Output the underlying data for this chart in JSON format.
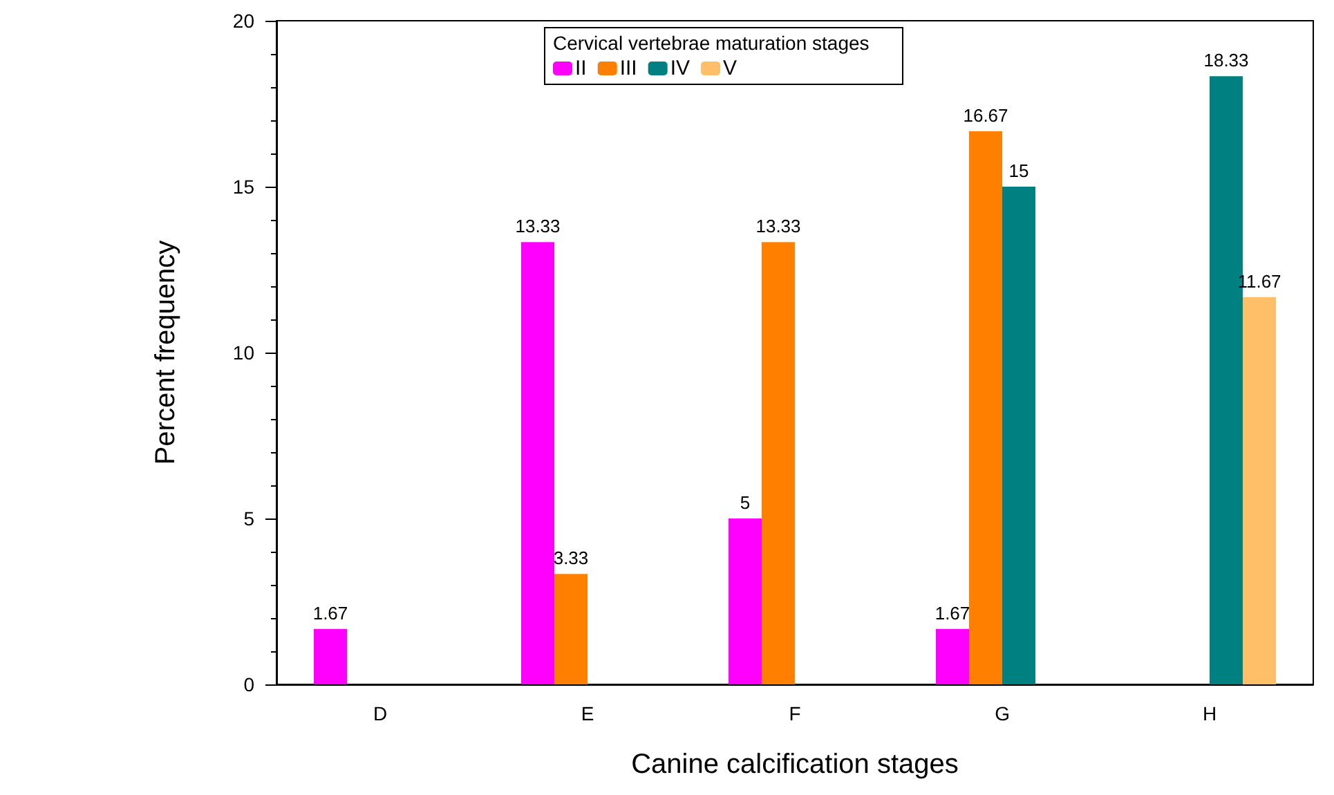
{
  "chart_data": {
    "type": "bar",
    "xlabel": "Canine calcification stages",
    "ylabel": "Percent frequency",
    "legend_title": "Cervical vertebrae maturation stages",
    "categories": [
      "D",
      "E",
      "F",
      "G",
      "H"
    ],
    "series": [
      {
        "name": "II",
        "color": "#ff00ff",
        "values": [
          1.67,
          13.33,
          5,
          1.67,
          null
        ]
      },
      {
        "name": "III",
        "color": "#ff8000",
        "values": [
          null,
          3.33,
          13.33,
          16.67,
          null
        ]
      },
      {
        "name": "IV",
        "color": "#008080",
        "values": [
          null,
          null,
          null,
          15,
          18.33
        ]
      },
      {
        "name": "V",
        "color": "#ffbf69",
        "values": [
          null,
          null,
          null,
          null,
          11.67
        ]
      }
    ],
    "ylim": [
      0,
      20
    ],
    "yticks": [
      0,
      5,
      10,
      15,
      20
    ],
    "grid": false,
    "legend": "top",
    "data_labels": true
  }
}
